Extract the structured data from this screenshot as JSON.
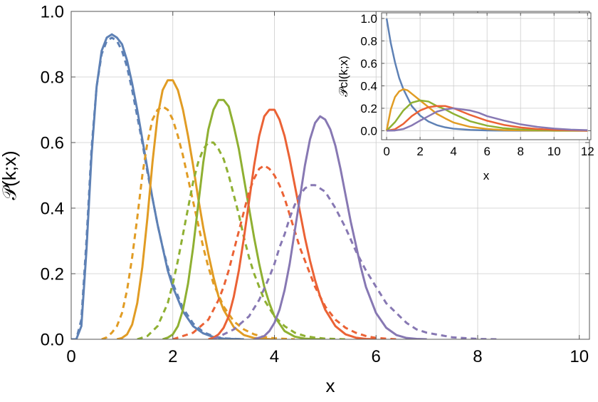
{
  "chart_data": [
    {
      "type": "line",
      "title": "",
      "xlabel": "x",
      "ylabel": "𝒫(k;x)",
      "xlim": [
        0,
        10.2
      ],
      "ylim": [
        0,
        1.0
      ],
      "xticks": [
        "0",
        "2",
        "4",
        "6",
        "8",
        "10"
      ],
      "yticks": [
        "0.0",
        "0.2",
        "0.4",
        "0.6",
        "0.8",
        "1.0"
      ],
      "grid": true,
      "colors": [
        "#5E81B5",
        "#E19C24",
        "#8FB032",
        "#EB6235",
        "#8778B3"
      ],
      "series": [
        {
          "style": "solid",
          "color": "#5E81B5",
          "x": [
            0.0,
            0.1,
            0.2,
            0.3,
            0.4,
            0.5,
            0.6,
            0.7,
            0.8,
            0.9,
            1.0,
            1.1,
            1.2,
            1.3,
            1.4,
            1.5,
            1.6,
            1.7,
            1.8,
            1.9,
            2.0,
            2.2,
            2.4,
            2.6,
            2.8,
            3.0,
            3.4
          ],
          "y": [
            0.0,
            0.0,
            0.04,
            0.27,
            0.56,
            0.77,
            0.88,
            0.92,
            0.93,
            0.92,
            0.9,
            0.85,
            0.78,
            0.7,
            0.61,
            0.52,
            0.43,
            0.35,
            0.28,
            0.21,
            0.16,
            0.085,
            0.04,
            0.018,
            0.007,
            0.002,
            0.0
          ]
        },
        {
          "style": "dashed",
          "color": "#5E81B5",
          "x": [
            0.0,
            0.1,
            0.2,
            0.3,
            0.4,
            0.5,
            0.6,
            0.7,
            0.8,
            0.9,
            1.0,
            1.1,
            1.2,
            1.3,
            1.4,
            1.5,
            1.6,
            1.7,
            1.8,
            1.9,
            2.0,
            2.2,
            2.4,
            2.6,
            2.8,
            3.0,
            3.4
          ],
          "y": [
            0.0,
            0.0,
            0.06,
            0.3,
            0.58,
            0.77,
            0.87,
            0.91,
            0.92,
            0.91,
            0.88,
            0.83,
            0.76,
            0.68,
            0.6,
            0.51,
            0.43,
            0.35,
            0.28,
            0.22,
            0.17,
            0.095,
            0.048,
            0.022,
            0.009,
            0.003,
            0.0
          ]
        },
        {
          "style": "solid",
          "color": "#E19C24",
          "x": [
            0.9,
            1.0,
            1.1,
            1.2,
            1.3,
            1.4,
            1.5,
            1.6,
            1.7,
            1.8,
            1.9,
            2.0,
            2.1,
            2.2,
            2.3,
            2.4,
            2.5,
            2.6,
            2.7,
            2.8,
            2.9,
            3.0,
            3.2,
            3.4,
            3.6,
            3.8,
            4.0
          ],
          "y": [
            0.0,
            0.004,
            0.015,
            0.045,
            0.11,
            0.22,
            0.37,
            0.54,
            0.68,
            0.76,
            0.79,
            0.79,
            0.76,
            0.7,
            0.62,
            0.53,
            0.43,
            0.34,
            0.26,
            0.19,
            0.13,
            0.09,
            0.037,
            0.013,
            0.004,
            0.001,
            0.0
          ]
        },
        {
          "style": "dashed",
          "color": "#E19C24",
          "x": [
            0.6,
            0.7,
            0.8,
            0.9,
            1.0,
            1.1,
            1.2,
            1.3,
            1.4,
            1.5,
            1.6,
            1.7,
            1.8,
            1.9,
            2.0,
            2.1,
            2.2,
            2.3,
            2.4,
            2.5,
            2.6,
            2.7,
            2.8,
            3.0,
            3.2,
            3.4,
            3.6,
            3.8,
            4.0,
            4.4
          ],
          "y": [
            0.0,
            0.006,
            0.02,
            0.04,
            0.08,
            0.15,
            0.25,
            0.37,
            0.5,
            0.6,
            0.67,
            0.7,
            0.71,
            0.7,
            0.67,
            0.62,
            0.56,
            0.49,
            0.42,
            0.35,
            0.28,
            0.22,
            0.17,
            0.1,
            0.055,
            0.03,
            0.015,
            0.007,
            0.003,
            0.0
          ]
        },
        {
          "style": "solid",
          "color": "#8FB032",
          "x": [
            1.8,
            1.9,
            2.0,
            2.1,
            2.2,
            2.3,
            2.4,
            2.5,
            2.6,
            2.7,
            2.8,
            2.9,
            3.0,
            3.1,
            3.2,
            3.3,
            3.4,
            3.5,
            3.6,
            3.7,
            3.8,
            3.9,
            4.0,
            4.2,
            4.4,
            4.6,
            4.8,
            5.0
          ],
          "y": [
            0.0,
            0.005,
            0.015,
            0.04,
            0.09,
            0.17,
            0.28,
            0.41,
            0.54,
            0.64,
            0.7,
            0.73,
            0.73,
            0.71,
            0.65,
            0.58,
            0.49,
            0.4,
            0.31,
            0.23,
            0.16,
            0.11,
            0.07,
            0.025,
            0.008,
            0.002,
            0.0005,
            0.0
          ]
        },
        {
          "style": "dashed",
          "color": "#8FB032",
          "x": [
            1.3,
            1.5,
            1.7,
            1.9,
            2.0,
            2.1,
            2.2,
            2.3,
            2.4,
            2.5,
            2.6,
            2.7,
            2.8,
            2.9,
            3.0,
            3.1,
            3.2,
            3.3,
            3.4,
            3.5,
            3.6,
            3.8,
            4.0,
            4.2,
            4.4,
            4.6,
            4.8,
            5.0,
            5.4
          ],
          "y": [
            0.0,
            0.01,
            0.04,
            0.11,
            0.17,
            0.24,
            0.32,
            0.4,
            0.48,
            0.54,
            0.58,
            0.6,
            0.6,
            0.58,
            0.55,
            0.5,
            0.44,
            0.38,
            0.31,
            0.25,
            0.2,
            0.12,
            0.07,
            0.04,
            0.02,
            0.01,
            0.005,
            0.002,
            0.0
          ]
        },
        {
          "style": "solid",
          "color": "#EB6235",
          "x": [
            2.7,
            2.8,
            2.9,
            3.0,
            3.1,
            3.2,
            3.3,
            3.4,
            3.5,
            3.6,
            3.7,
            3.8,
            3.9,
            4.0,
            4.1,
            4.2,
            4.3,
            4.4,
            4.5,
            4.6,
            4.7,
            4.8,
            4.9,
            5.0,
            5.2,
            5.4,
            5.6,
            5.8,
            6.0
          ],
          "y": [
            0.0,
            0.005,
            0.015,
            0.035,
            0.07,
            0.13,
            0.21,
            0.31,
            0.42,
            0.53,
            0.62,
            0.68,
            0.7,
            0.7,
            0.67,
            0.62,
            0.55,
            0.47,
            0.39,
            0.31,
            0.24,
            0.18,
            0.13,
            0.09,
            0.04,
            0.015,
            0.005,
            0.001,
            0.0
          ]
        },
        {
          "style": "dashed",
          "color": "#EB6235",
          "x": [
            2.0,
            2.4,
            2.7,
            2.9,
            3.0,
            3.1,
            3.2,
            3.3,
            3.4,
            3.5,
            3.6,
            3.7,
            3.8,
            3.9,
            4.0,
            4.1,
            4.2,
            4.3,
            4.4,
            4.5,
            4.6,
            4.8,
            5.0,
            5.2,
            5.4,
            5.6,
            5.8,
            6.0,
            6.4
          ],
          "y": [
            0.0,
            0.02,
            0.06,
            0.12,
            0.16,
            0.21,
            0.27,
            0.33,
            0.39,
            0.45,
            0.49,
            0.52,
            0.53,
            0.52,
            0.5,
            0.47,
            0.43,
            0.38,
            0.33,
            0.28,
            0.24,
            0.16,
            0.1,
            0.06,
            0.035,
            0.02,
            0.01,
            0.004,
            0.0
          ]
        },
        {
          "style": "solid",
          "color": "#8778B3",
          "x": [
            3.6,
            3.8,
            3.9,
            4.0,
            4.1,
            4.2,
            4.3,
            4.4,
            4.5,
            4.6,
            4.7,
            4.8,
            4.9,
            5.0,
            5.1,
            5.2,
            5.3,
            5.4,
            5.5,
            5.6,
            5.7,
            5.8,
            5.9,
            6.0,
            6.2,
            6.4,
            6.6,
            6.8,
            7.0
          ],
          "y": [
            0.0,
            0.01,
            0.025,
            0.05,
            0.09,
            0.15,
            0.23,
            0.33,
            0.43,
            0.53,
            0.61,
            0.66,
            0.68,
            0.67,
            0.64,
            0.59,
            0.52,
            0.44,
            0.36,
            0.29,
            0.22,
            0.16,
            0.12,
            0.08,
            0.035,
            0.013,
            0.004,
            0.001,
            0.0
          ]
        },
        {
          "style": "dashed",
          "color": "#8778B3",
          "x": [
            2.8,
            3.2,
            3.5,
            3.7,
            3.9,
            4.0,
            4.1,
            4.2,
            4.3,
            4.4,
            4.5,
            4.6,
            4.7,
            4.8,
            4.9,
            5.0,
            5.2,
            5.4,
            5.6,
            5.8,
            6.0,
            6.2,
            6.4,
            6.6,
            6.8,
            7.0,
            7.5,
            8.0,
            8.4
          ],
          "y": [
            0.0,
            0.03,
            0.07,
            0.12,
            0.19,
            0.23,
            0.28,
            0.32,
            0.37,
            0.41,
            0.44,
            0.46,
            0.47,
            0.47,
            0.46,
            0.45,
            0.4,
            0.34,
            0.27,
            0.21,
            0.16,
            0.11,
            0.08,
            0.05,
            0.03,
            0.02,
            0.006,
            0.001,
            0.0
          ]
        }
      ]
    },
    {
      "type": "line",
      "title": "",
      "xlabel": "x",
      "ylabel": "𝒫cl(k;x)",
      "xlim": [
        -0.3,
        12.2
      ],
      "ylim": [
        -0.08,
        1.05
      ],
      "xticks": [
        "0",
        "2",
        "4",
        "6",
        "8",
        "10",
        "12"
      ],
      "yticks": [
        "0.0",
        "0.2",
        "0.4",
        "0.6",
        "0.8",
        "1.0"
      ],
      "grid": true,
      "colors": [
        "#5E81B5",
        "#E19C24",
        "#8FB032",
        "#EB6235",
        "#8778B3"
      ],
      "series": [
        {
          "color": "#5E81B5",
          "x": [
            0,
            0.25,
            0.5,
            0.75,
            1.0,
            1.5,
            2.0,
            2.5,
            3.0,
            3.5,
            4.0,
            5.0,
            6.0,
            7.0,
            8.0,
            10.0,
            12.0
          ],
          "y": [
            1.0,
            0.78,
            0.61,
            0.47,
            0.37,
            0.22,
            0.135,
            0.082,
            0.05,
            0.03,
            0.018,
            0.007,
            0.0025,
            0.001,
            0.0003,
            0.0,
            0.0
          ]
        },
        {
          "color": "#E19C24",
          "x": [
            0,
            0.25,
            0.5,
            0.75,
            1.0,
            1.25,
            1.5,
            2.0,
            2.5,
            3.0,
            3.5,
            4.0,
            5.0,
            6.0,
            7.0,
            8.0,
            10.0,
            12.0
          ],
          "y": [
            0.0,
            0.19,
            0.3,
            0.35,
            0.37,
            0.36,
            0.33,
            0.27,
            0.21,
            0.15,
            0.11,
            0.073,
            0.034,
            0.015,
            0.006,
            0.003,
            0.0005,
            0.0
          ]
        },
        {
          "color": "#8FB032",
          "x": [
            0,
            0.5,
            1.0,
            1.5,
            2.0,
            2.5,
            3.0,
            3.5,
            4.0,
            5.0,
            6.0,
            7.0,
            8.0,
            9.0,
            10.0,
            12.0
          ],
          "y": [
            0.0,
            0.076,
            0.18,
            0.25,
            0.27,
            0.26,
            0.22,
            0.19,
            0.15,
            0.084,
            0.045,
            0.022,
            0.011,
            0.005,
            0.002,
            0.0
          ]
        },
        {
          "color": "#EB6235",
          "x": [
            0,
            0.5,
            1.0,
            1.5,
            2.0,
            2.5,
            3.0,
            3.5,
            4.0,
            4.5,
            5.0,
            6.0,
            7.0,
            8.0,
            9.0,
            10.0,
            11.0,
            12.0
          ],
          "y": [
            0.0,
            0.013,
            0.061,
            0.13,
            0.18,
            0.21,
            0.22,
            0.22,
            0.2,
            0.17,
            0.14,
            0.089,
            0.052,
            0.029,
            0.015,
            0.008,
            0.004,
            0.0
          ]
        },
        {
          "color": "#8778B3",
          "x": [
            0,
            0.5,
            1.0,
            1.5,
            2.0,
            2.5,
            3.0,
            3.5,
            4.0,
            4.5,
            5.0,
            5.5,
            6.0,
            7.0,
            8.0,
            9.0,
            10.0,
            11.0,
            12.0
          ],
          "y": [
            0.0,
            0.002,
            0.015,
            0.047,
            0.09,
            0.13,
            0.17,
            0.19,
            0.2,
            0.19,
            0.18,
            0.16,
            0.13,
            0.091,
            0.057,
            0.034,
            0.019,
            0.01,
            0.005
          ]
        }
      ]
    }
  ]
}
